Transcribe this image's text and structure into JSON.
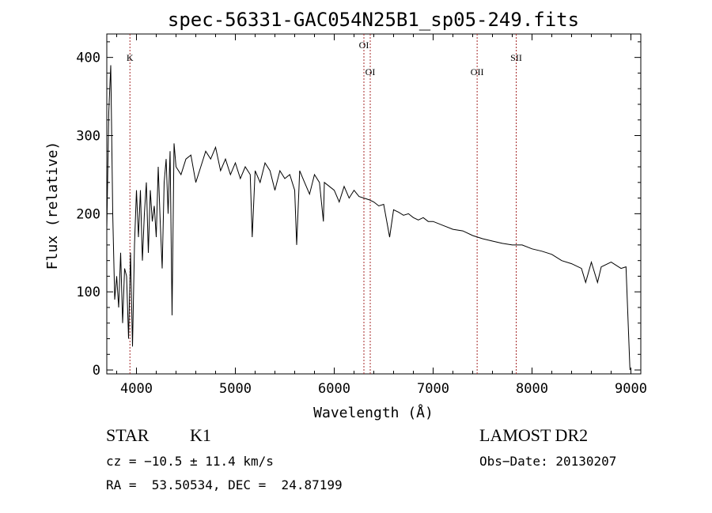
{
  "chart_data": {
    "type": "line",
    "title": "spec-56331-GAC054N25B1_sp05-249.fits",
    "xlabel": "Wavelength (Å)",
    "ylabel": "Flux (relative)",
    "xlim": [
      3700,
      9100
    ],
    "ylim": [
      -5,
      430
    ],
    "xticks": [
      4000,
      5000,
      6000,
      7000,
      8000,
      9000
    ],
    "yticks": [
      0,
      100,
      200,
      300,
      400
    ],
    "grid": false,
    "line_color": "#000000",
    "marker_color": "#a52a2a",
    "spectral_lines": [
      {
        "label": "K",
        "x": 3934
      },
      {
        "label": "OI",
        "x": 6300
      },
      {
        "label": "OI",
        "x": 6364
      },
      {
        "label": "OII",
        "x": 7445
      },
      {
        "label": "SII",
        "x": 7840
      }
    ],
    "series": [
      {
        "x": [
          3700,
          3720,
          3740,
          3760,
          3780,
          3800,
          3820,
          3840,
          3860,
          3880,
          3900,
          3920,
          3940,
          3960,
          3980,
          4000,
          4020,
          4040,
          4060,
          4080,
          4100,
          4120,
          4140,
          4160,
          4180,
          4200,
          4220,
          4240,
          4260,
          4280,
          4300,
          4320,
          4340,
          4360,
          4380,
          4400,
          4450,
          4500,
          4550,
          4600,
          4650,
          4700,
          4750,
          4800,
          4850,
          4900,
          4950,
          5000,
          5050,
          5100,
          5150,
          5170,
          5200,
          5250,
          5300,
          5350,
          5400,
          5450,
          5500,
          5550,
          5600,
          5620,
          5650,
          5700,
          5750,
          5800,
          5850,
          5890,
          5900,
          5950,
          6000,
          6050,
          6100,
          6150,
          6200,
          6250,
          6300,
          6350,
          6400,
          6450,
          6500,
          6560,
          6600,
          6650,
          6700,
          6750,
          6800,
          6850,
          6900,
          6950,
          7000,
          7100,
          7200,
          7300,
          7400,
          7500,
          7600,
          7700,
          7800,
          7900,
          8000,
          8100,
          8200,
          8300,
          8400,
          8500,
          8542,
          8600,
          8662,
          8700,
          8800,
          8900,
          8950,
          8990
        ],
        "y": [
          180,
          330,
          390,
          200,
          90,
          120,
          80,
          150,
          60,
          130,
          120,
          40,
          150,
          30,
          160,
          230,
          170,
          230,
          140,
          200,
          240,
          150,
          230,
          190,
          210,
          170,
          260,
          190,
          130,
          240,
          270,
          200,
          280,
          70,
          290,
          260,
          250,
          270,
          275,
          240,
          260,
          280,
          270,
          285,
          255,
          270,
          250,
          265,
          245,
          260,
          250,
          170,
          255,
          240,
          265,
          255,
          230,
          255,
          245,
          250,
          230,
          160,
          255,
          240,
          225,
          250,
          240,
          190,
          240,
          235,
          230,
          215,
          235,
          220,
          230,
          222,
          220,
          218,
          215,
          210,
          212,
          170,
          205,
          202,
          198,
          200,
          195,
          192,
          195,
          190,
          190,
          185,
          180,
          178,
          172,
          168,
          165,
          162,
          160,
          160,
          155,
          152,
          148,
          140,
          136,
          130,
          112,
          138,
          112,
          132,
          138,
          130,
          132,
          0
        ]
      }
    ]
  },
  "info": {
    "object_class": "STAR",
    "subclass": "K1",
    "survey": "LAMOST DR2",
    "redshift": "cz = −10.5 ± 11.4 km/s",
    "obs_date": "Obs−Date: 20130207",
    "coords": "RA =  53.50534, DEC =  24.87199"
  }
}
